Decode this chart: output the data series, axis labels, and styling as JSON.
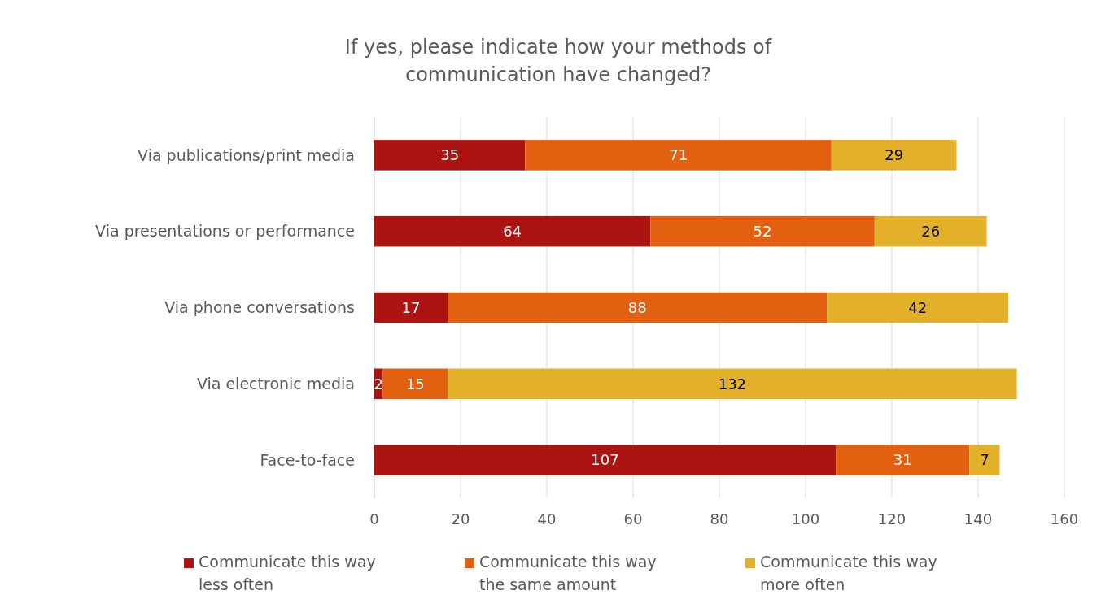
{
  "chart_data": {
    "type": "bar",
    "orientation": "horizontal",
    "stacked": true,
    "title": "If yes, please indicate how your methods of communication have changed?",
    "categories": [
      "Via publications/print media",
      "Via presentations or performance",
      "Via phone conversations",
      "Via electronic media",
      "Face-to-face"
    ],
    "series": [
      {
        "name": "Communicate this way less often",
        "color": "#ab1410",
        "values": [
          35,
          64,
          17,
          2,
          107
        ]
      },
      {
        "name": "Communicate this way the same amount",
        "color": "#e2600f",
        "values": [
          71,
          52,
          88,
          15,
          31
        ]
      },
      {
        "name": "Communicate this way more often",
        "color": "#e3b02a",
        "values": [
          29,
          26,
          42,
          132,
          7
        ]
      }
    ],
    "xlim": [
      0,
      160
    ],
    "xticks": [
      0,
      20,
      40,
      60,
      80,
      100,
      120,
      140,
      160
    ],
    "grid": "x",
    "legend": "bottom",
    "data_labels": true
  }
}
